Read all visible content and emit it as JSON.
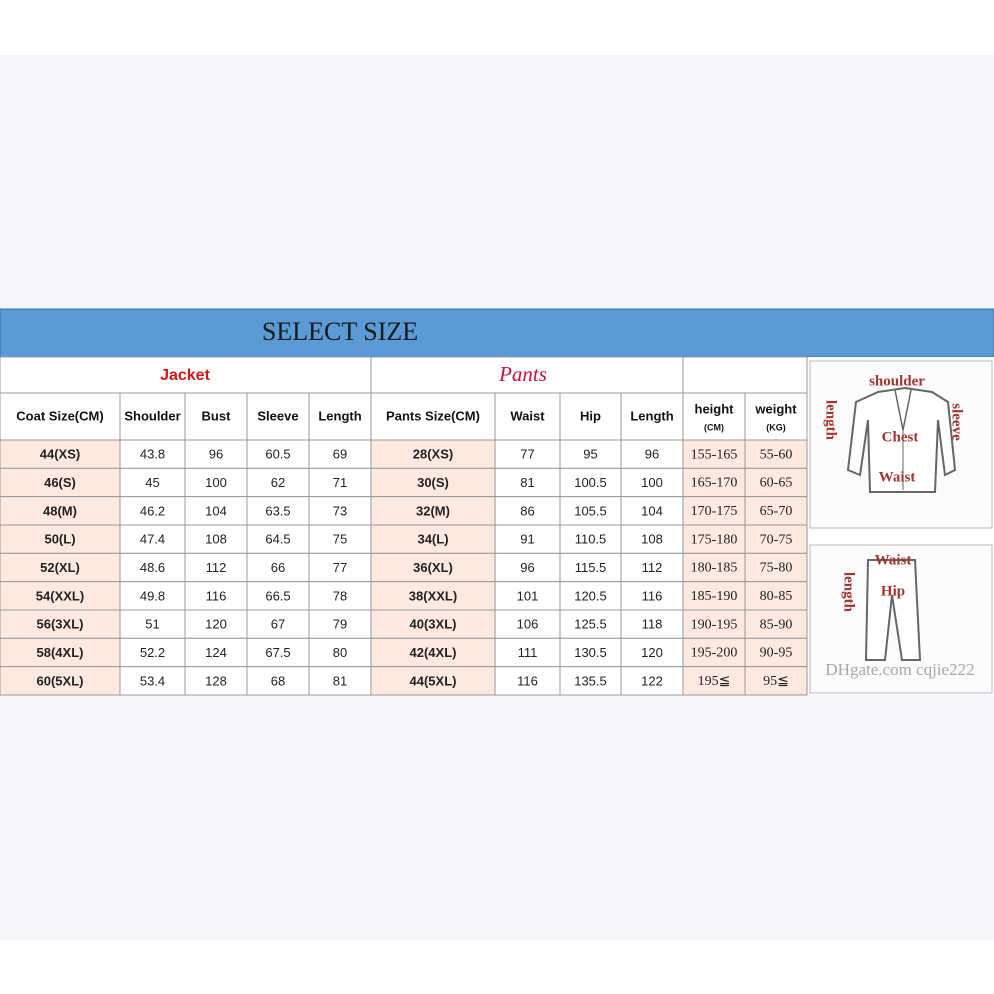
{
  "header": {
    "title": "SELECT SIZE"
  },
  "jacket": {
    "title": "Jacket",
    "columns": [
      "Coat Size(CM)",
      "Shoulder",
      "Bust",
      "Sleeve",
      "Length"
    ],
    "rows": [
      [
        "44(XS)",
        43.8,
        96,
        60.5,
        69
      ],
      [
        "46(S)",
        45,
        100,
        62,
        71
      ],
      [
        "48(M)",
        46.2,
        104,
        63.5,
        73
      ],
      [
        "50(L)",
        47.4,
        108,
        64.5,
        75
      ],
      [
        "52(XL)",
        48.6,
        112,
        66,
        77
      ],
      [
        "54(XXL)",
        49.8,
        116,
        66.5,
        78
      ],
      [
        "56(3XL)",
        51,
        120,
        67,
        79
      ],
      [
        "58(4XL)",
        52.2,
        124,
        67.5,
        80
      ],
      [
        "60(5XL)",
        53.4,
        128,
        68,
        81
      ]
    ]
  },
  "pants": {
    "title": "Pants",
    "columns": [
      "Pants Size(CM)",
      "Waist",
      "Hip",
      "Length"
    ],
    "rows": [
      [
        "28(XS)",
        77,
        95,
        96
      ],
      [
        "30(S)",
        81,
        100.5,
        100
      ],
      [
        "32(M)",
        86,
        105.5,
        104
      ],
      [
        "34(L)",
        91,
        110.5,
        108
      ],
      [
        "36(XL)",
        96,
        115.5,
        112
      ],
      [
        "38(XXL)",
        101,
        120.5,
        116
      ],
      [
        "40(3XL)",
        106,
        125.5,
        118
      ],
      [
        "42(4XL)",
        111,
        130.5,
        120
      ],
      [
        "44(5XL)",
        116,
        135.5,
        122
      ]
    ]
  },
  "body": {
    "columns": [
      {
        "name": "height",
        "unit": "(CM)"
      },
      {
        "name": "weight",
        "unit": "(KG)"
      }
    ],
    "rows": [
      [
        "155-165",
        "55-60"
      ],
      [
        "165-170",
        "60-65"
      ],
      [
        "170-175",
        "65-70"
      ],
      [
        "175-180",
        "70-75"
      ],
      [
        "180-185",
        "75-80"
      ],
      [
        "185-190",
        "80-85"
      ],
      [
        "190-195",
        "85-90"
      ],
      [
        "195-200",
        "90-95"
      ],
      [
        "195≦",
        "95≦"
      ]
    ]
  },
  "diagram": {
    "jacket_labels": [
      "shoulder",
      "length",
      "sleeve",
      "Chest",
      "Waist"
    ],
    "pants_labels": [
      "Waist",
      "length",
      "Hip"
    ]
  },
  "watermark": "DHgate.com cqjie222"
}
